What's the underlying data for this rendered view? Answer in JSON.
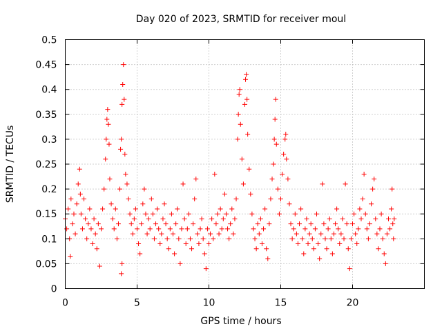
{
  "chart_data": {
    "type": "scatter",
    "title": "Day 020 of 2023, SRMTID for receiver moul",
    "xlabel": "GPS time / hours",
    "ylabel": "SRMTID / TECUs",
    "xlim": [
      0,
      25
    ],
    "ylim": [
      0,
      0.5
    ],
    "x_ticks": [
      0,
      5,
      10,
      15,
      20
    ],
    "x_tick_labels": [
      "0",
      "5",
      "10",
      "15",
      "20"
    ],
    "y_ticks": [
      0,
      0.05,
      0.1,
      0.15,
      0.2,
      0.25,
      0.3,
      0.35,
      0.4,
      0.45,
      0.5
    ],
    "y_tick_labels": [
      "0",
      "0.05",
      "0.1",
      "0.15",
      "0.2",
      "0.25",
      "0.3",
      "0.35",
      "0.4",
      "0.45",
      "0.5"
    ],
    "grid": true,
    "marker": "+",
    "color": "#ff0000",
    "series": [
      {
        "name": "SRMTID",
        "points": [
          [
            0.0,
            0.14
          ],
          [
            0.1,
            0.12
          ],
          [
            0.2,
            0.16
          ],
          [
            0.3,
            0.1
          ],
          [
            0.35,
            0.065
          ],
          [
            0.4,
            0.18
          ],
          [
            0.5,
            0.13
          ],
          [
            0.6,
            0.15
          ],
          [
            0.7,
            0.11
          ],
          [
            0.8,
            0.17
          ],
          [
            0.9,
            0.21
          ],
          [
            1.0,
            0.24
          ],
          [
            1.05,
            0.19
          ],
          [
            1.1,
            0.15
          ],
          [
            1.2,
            0.12
          ],
          [
            1.3,
            0.18
          ],
          [
            1.4,
            0.14
          ],
          [
            1.5,
            0.1
          ],
          [
            1.6,
            0.13
          ],
          [
            1.7,
            0.16
          ],
          [
            1.8,
            0.12
          ],
          [
            1.9,
            0.09
          ],
          [
            2.0,
            0.14
          ],
          [
            2.1,
            0.11
          ],
          [
            2.2,
            0.08
          ],
          [
            2.3,
            0.13
          ],
          [
            2.4,
            0.045
          ],
          [
            2.5,
            0.12
          ],
          [
            2.6,
            0.16
          ],
          [
            2.7,
            0.2
          ],
          [
            2.8,
            0.26
          ],
          [
            2.85,
            0.3
          ],
          [
            2.9,
            0.34
          ],
          [
            2.95,
            0.36
          ],
          [
            3.0,
            0.33
          ],
          [
            3.05,
            0.29
          ],
          [
            3.1,
            0.22
          ],
          [
            3.2,
            0.17
          ],
          [
            3.3,
            0.14
          ],
          [
            3.4,
            0.12
          ],
          [
            3.5,
            0.16
          ],
          [
            3.6,
            0.1
          ],
          [
            3.7,
            0.13
          ],
          [
            3.8,
            0.2
          ],
          [
            3.85,
            0.28
          ],
          [
            3.9,
            0.3
          ],
          [
            3.95,
            0.37
          ],
          [
            4.0,
            0.41
          ],
          [
            4.05,
            0.45
          ],
          [
            4.1,
            0.38
          ],
          [
            4.15,
            0.27
          ],
          [
            4.2,
            0.23
          ],
          [
            4.3,
            0.21
          ],
          [
            4.4,
            0.18
          ],
          [
            4.5,
            0.15
          ],
          [
            4.6,
            0.13
          ],
          [
            3.9,
            0.03
          ],
          [
            3.95,
            0.05
          ],
          [
            4.7,
            0.11
          ],
          [
            4.8,
            0.14
          ],
          [
            4.9,
            0.16
          ],
          [
            5.0,
            0.12
          ],
          [
            5.1,
            0.09
          ],
          [
            5.2,
            0.07
          ],
          [
            5.3,
            0.13
          ],
          [
            5.4,
            0.17
          ],
          [
            5.5,
            0.2
          ],
          [
            5.6,
            0.15
          ],
          [
            5.7,
            0.11
          ],
          [
            5.8,
            0.14
          ],
          [
            5.9,
            0.12
          ],
          [
            6.0,
            0.18
          ],
          [
            6.1,
            0.15
          ],
          [
            6.2,
            0.1
          ],
          [
            6.3,
            0.13
          ],
          [
            6.4,
            0.16
          ],
          [
            6.5,
            0.12
          ],
          [
            6.6,
            0.09
          ],
          [
            6.7,
            0.11
          ],
          [
            6.8,
            0.14
          ],
          [
            6.9,
            0.17
          ],
          [
            7.0,
            0.13
          ],
          [
            7.1,
            0.1
          ],
          [
            7.2,
            0.08
          ],
          [
            7.3,
            0.12
          ],
          [
            7.4,
            0.15
          ],
          [
            7.5,
            0.11
          ],
          [
            7.6,
            0.07
          ],
          [
            7.7,
            0.13
          ],
          [
            7.8,
            0.16
          ],
          [
            7.9,
            0.1
          ],
          [
            8.0,
            0.05
          ],
          [
            8.1,
            0.12
          ],
          [
            8.2,
            0.21
          ],
          [
            8.3,
            0.14
          ],
          [
            8.4,
            0.09
          ],
          [
            8.5,
            0.12
          ],
          [
            8.6,
            0.15
          ],
          [
            8.7,
            0.1
          ],
          [
            8.8,
            0.08
          ],
          [
            8.9,
            0.13
          ],
          [
            9.0,
            0.18
          ],
          [
            9.1,
            0.22
          ],
          [
            9.2,
            0.11
          ],
          [
            9.3,
            0.09
          ],
          [
            9.4,
            0.12
          ],
          [
            9.5,
            0.14
          ],
          [
            9.6,
            0.1
          ],
          [
            9.7,
            0.07
          ],
          [
            9.8,
            0.04
          ],
          [
            9.9,
            0.12
          ],
          [
            10.0,
            0.09
          ],
          [
            10.1,
            0.11
          ],
          [
            10.2,
            0.14
          ],
          [
            10.3,
            0.1
          ],
          [
            10.4,
            0.23
          ],
          [
            10.5,
            0.13
          ],
          [
            10.6,
            0.15
          ],
          [
            10.7,
            0.11
          ],
          [
            10.8,
            0.16
          ],
          [
            10.9,
            0.12
          ],
          [
            11.0,
            0.14
          ],
          [
            11.1,
            0.19
          ],
          [
            11.2,
            0.15
          ],
          [
            11.3,
            0.12
          ],
          [
            11.4,
            0.1
          ],
          [
            11.5,
            0.13
          ],
          [
            11.6,
            0.16
          ],
          [
            11.7,
            0.11
          ],
          [
            11.8,
            0.14
          ],
          [
            11.9,
            0.18
          ],
          [
            12.0,
            0.3
          ],
          [
            12.05,
            0.35
          ],
          [
            12.1,
            0.39
          ],
          [
            12.15,
            0.4
          ],
          [
            12.2,
            0.33
          ],
          [
            12.3,
            0.26
          ],
          [
            12.4,
            0.21
          ],
          [
            12.5,
            0.37
          ],
          [
            12.55,
            0.42
          ],
          [
            12.6,
            0.43
          ],
          [
            12.65,
            0.38
          ],
          [
            12.7,
            0.31
          ],
          [
            12.8,
            0.24
          ],
          [
            12.9,
            0.19
          ],
          [
            13.0,
            0.15
          ],
          [
            13.1,
            0.12
          ],
          [
            13.2,
            0.1
          ],
          [
            13.3,
            0.08
          ],
          [
            13.4,
            0.13
          ],
          [
            13.5,
            0.11
          ],
          [
            13.6,
            0.14
          ],
          [
            13.7,
            0.09
          ],
          [
            13.8,
            0.12
          ],
          [
            13.9,
            0.16
          ],
          [
            14.0,
            0.08
          ],
          [
            14.1,
            0.06
          ],
          [
            14.2,
            0.13
          ],
          [
            14.3,
            0.18
          ],
          [
            14.4,
            0.22
          ],
          [
            14.5,
            0.25
          ],
          [
            14.55,
            0.3
          ],
          [
            14.6,
            0.34
          ],
          [
            14.65,
            0.38
          ],
          [
            14.7,
            0.29
          ],
          [
            14.8,
            0.2
          ],
          [
            14.9,
            0.15
          ],
          [
            15.0,
            0.18
          ],
          [
            15.1,
            0.23
          ],
          [
            15.2,
            0.27
          ],
          [
            15.3,
            0.3
          ],
          [
            15.35,
            0.31
          ],
          [
            15.4,
            0.26
          ],
          [
            15.5,
            0.22
          ],
          [
            15.6,
            0.17
          ],
          [
            15.7,
            0.13
          ],
          [
            15.8,
            0.1
          ],
          [
            15.9,
            0.12
          ],
          [
            16.0,
            0.15
          ],
          [
            16.1,
            0.11
          ],
          [
            16.2,
            0.09
          ],
          [
            16.3,
            0.13
          ],
          [
            16.4,
            0.16
          ],
          [
            16.5,
            0.1
          ],
          [
            16.6,
            0.07
          ],
          [
            16.7,
            0.12
          ],
          [
            16.8,
            0.14
          ],
          [
            16.9,
            0.09
          ],
          [
            17.0,
            0.11
          ],
          [
            17.1,
            0.13
          ],
          [
            17.2,
            0.1
          ],
          [
            17.3,
            0.08
          ],
          [
            17.4,
            0.12
          ],
          [
            17.5,
            0.15
          ],
          [
            17.6,
            0.09
          ],
          [
            17.7,
            0.06
          ],
          [
            17.8,
            0.11
          ],
          [
            17.9,
            0.21
          ],
          [
            18.0,
            0.13
          ],
          [
            18.1,
            0.1
          ],
          [
            18.2,
            0.08
          ],
          [
            18.3,
            0.12
          ],
          [
            18.4,
            0.14
          ],
          [
            18.5,
            0.1
          ],
          [
            18.6,
            0.07
          ],
          [
            18.7,
            0.11
          ],
          [
            18.8,
            0.13
          ],
          [
            18.9,
            0.16
          ],
          [
            19.0,
            0.12
          ],
          [
            19.1,
            0.09
          ],
          [
            19.2,
            0.11
          ],
          [
            19.3,
            0.14
          ],
          [
            19.4,
            0.1
          ],
          [
            19.5,
            0.21
          ],
          [
            19.6,
            0.13
          ],
          [
            19.7,
            0.08
          ],
          [
            19.8,
            0.04
          ],
          [
            19.9,
            0.1
          ],
          [
            20.0,
            0.13
          ],
          [
            20.1,
            0.15
          ],
          [
            20.2,
            0.11
          ],
          [
            20.3,
            0.09
          ],
          [
            20.4,
            0.12
          ],
          [
            20.5,
            0.16
          ],
          [
            20.6,
            0.14
          ],
          [
            20.7,
            0.18
          ],
          [
            20.8,
            0.23
          ],
          [
            20.9,
            0.15
          ],
          [
            21.0,
            0.12
          ],
          [
            21.1,
            0.1
          ],
          [
            21.2,
            0.13
          ],
          [
            21.3,
            0.17
          ],
          [
            21.4,
            0.2
          ],
          [
            21.5,
            0.22
          ],
          [
            21.6,
            0.14
          ],
          [
            21.7,
            0.11
          ],
          [
            21.8,
            0.08
          ],
          [
            21.9,
            0.12
          ],
          [
            22.0,
            0.15
          ],
          [
            22.1,
            0.1
          ],
          [
            22.2,
            0.07
          ],
          [
            22.3,
            0.05
          ],
          [
            22.4,
            0.11
          ],
          [
            22.5,
            0.14
          ],
          [
            22.6,
            0.12
          ],
          [
            22.7,
            0.16
          ],
          [
            22.75,
            0.2
          ],
          [
            22.8,
            0.13
          ],
          [
            22.85,
            0.1
          ],
          [
            22.9,
            0.14
          ]
        ]
      }
    ]
  }
}
